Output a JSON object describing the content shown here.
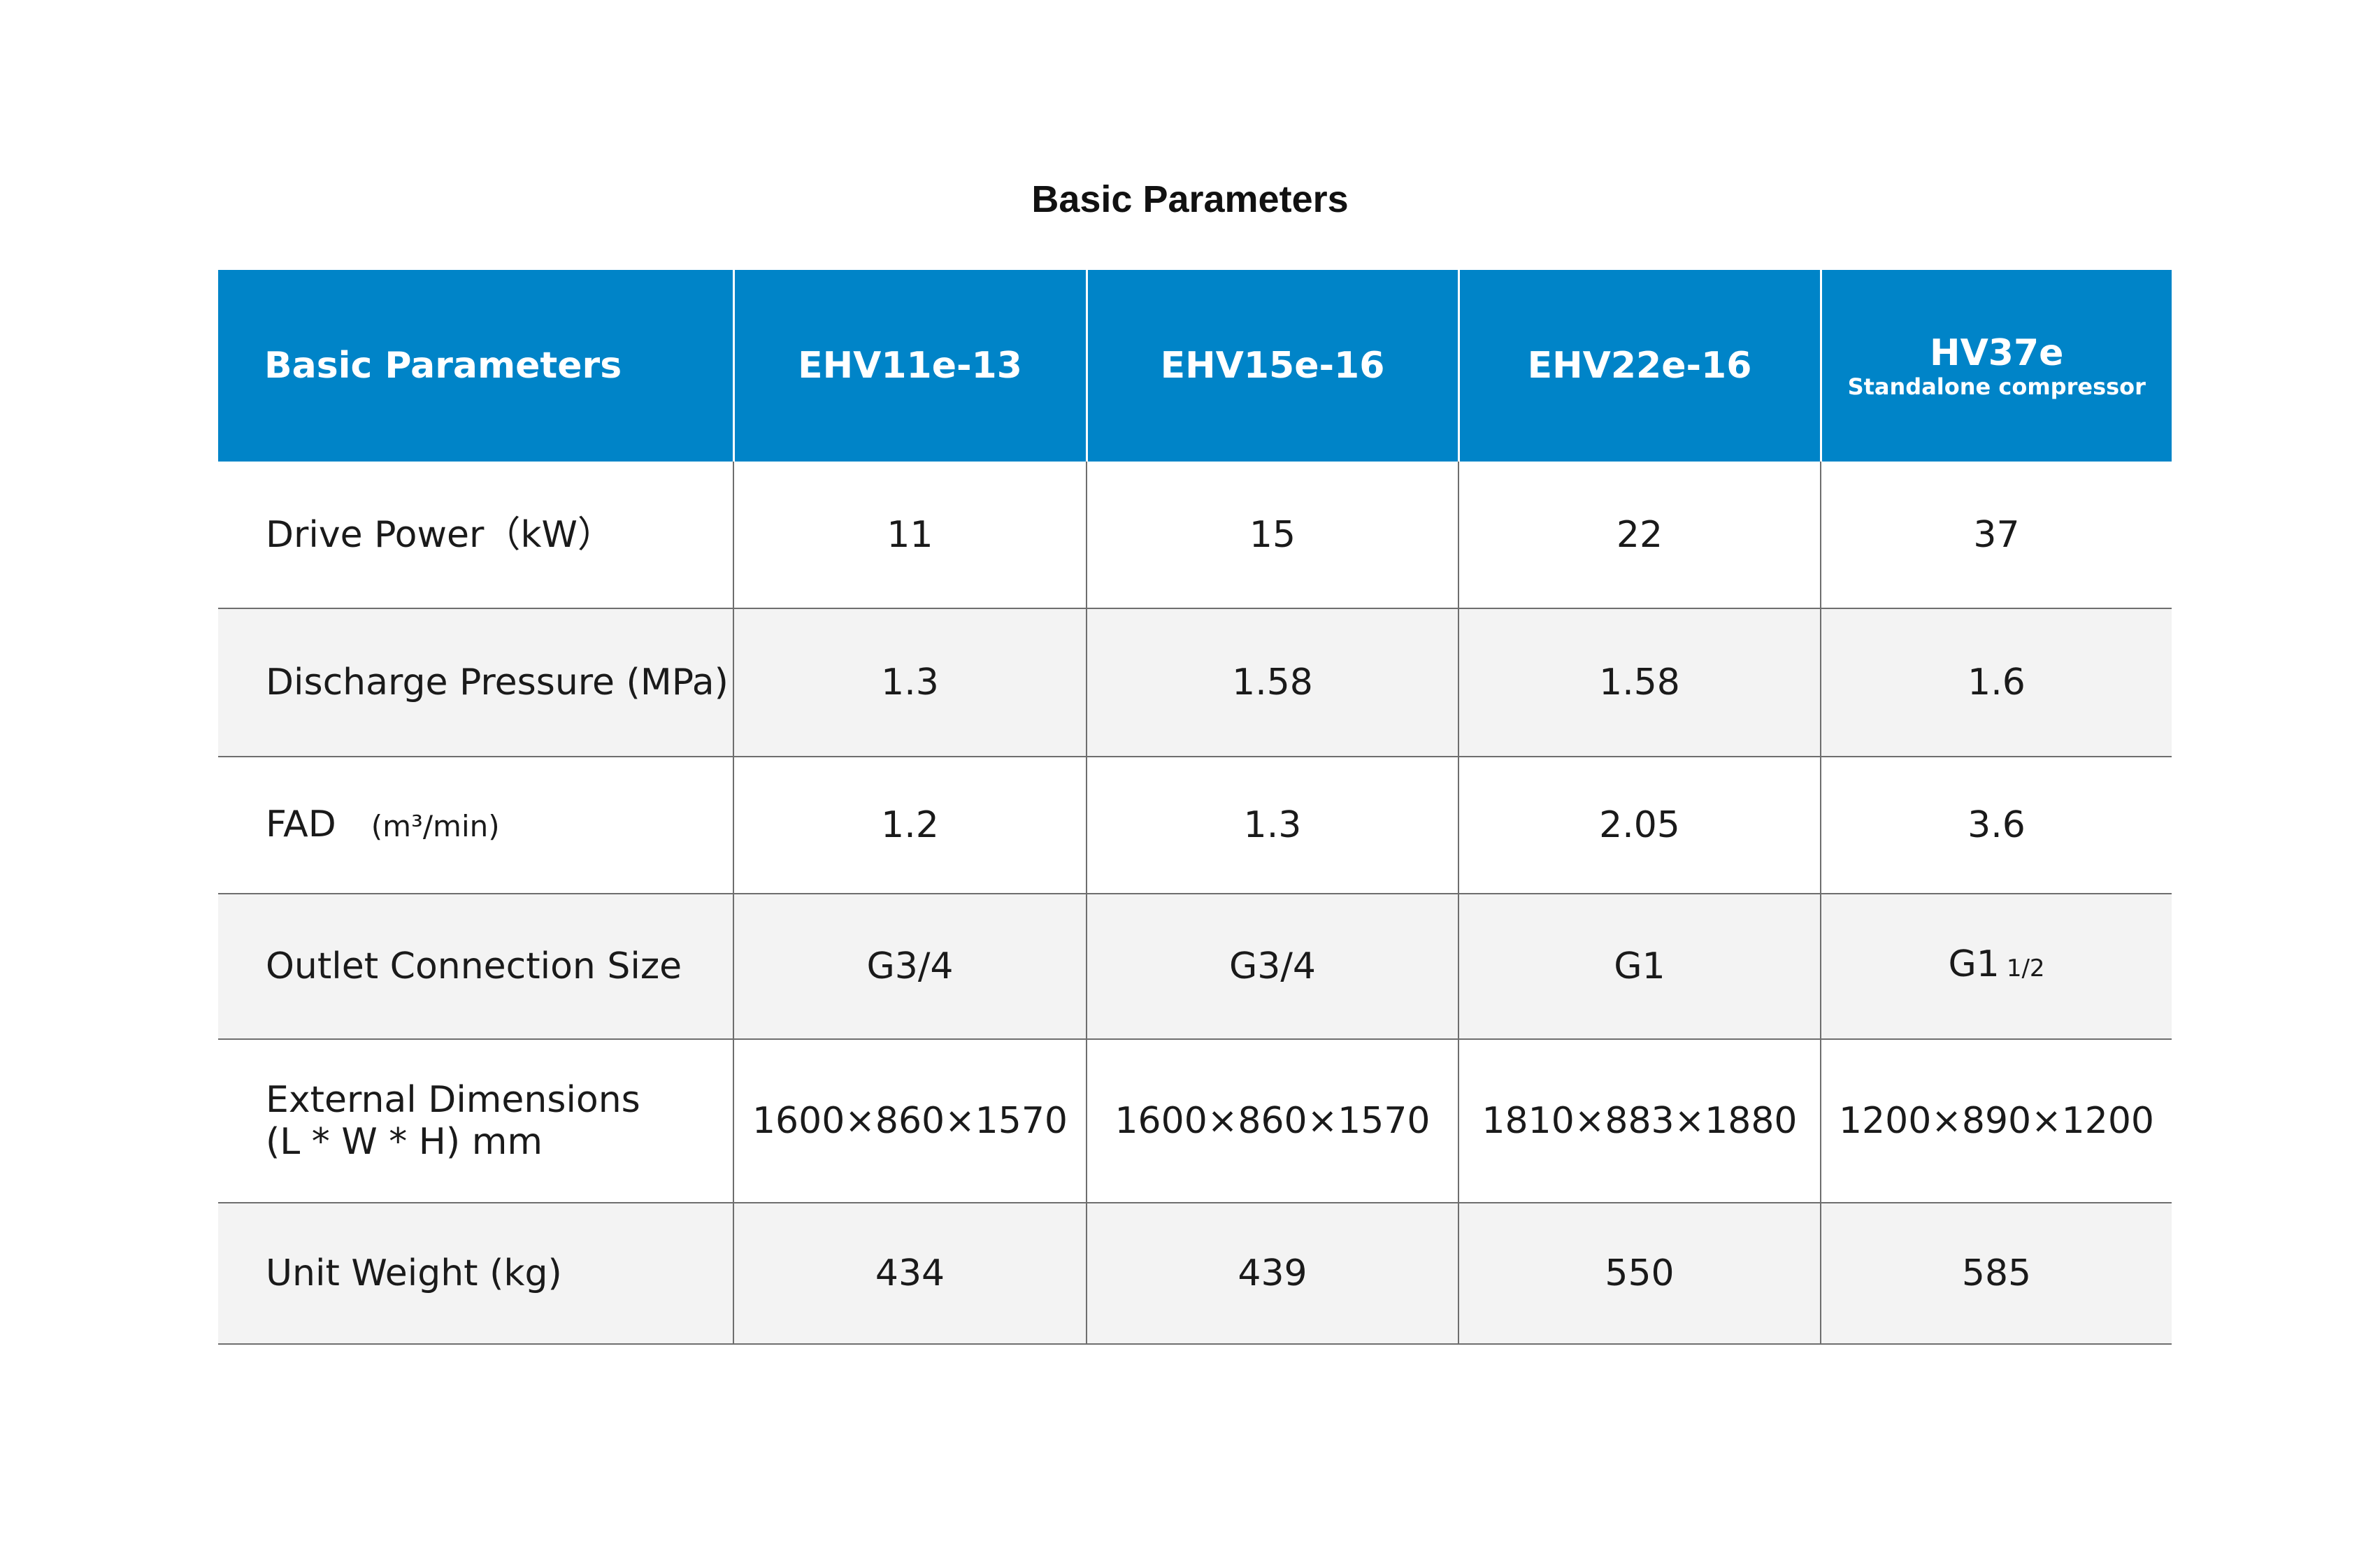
{
  "title": "Basic Parameters",
  "table": {
    "header": {
      "first": "Basic Parameters",
      "models": [
        {
          "name": "EHV11e-13",
          "note": ""
        },
        {
          "name": "EHV15e-16",
          "note": ""
        },
        {
          "name": "EHV22e-16",
          "note": ""
        },
        {
          "name": "HV37e",
          "note": "Standalone compressor"
        }
      ]
    },
    "rows": [
      {
        "label": "Drive Power（kW）",
        "values": [
          "11",
          "15",
          "22",
          "37"
        ]
      },
      {
        "label": "Discharge Pressure (MPa)",
        "values": [
          "1.3",
          "1.58",
          "1.58",
          "1.6"
        ]
      },
      {
        "label": "FAD",
        "unit": "(m³/min)",
        "values": [
          "1.2",
          "1.3",
          "2.05",
          "3.6"
        ]
      },
      {
        "label": "Outlet Connection Size",
        "values": [
          "G3/4",
          "G3/4",
          "G1",
          "G1"
        ],
        "last_suffix": "1/2"
      },
      {
        "label_line1": "External Dimensions",
        "label_line2": "(L * W * H) mm",
        "values": [
          "1600×860×1570",
          "1600×860×1570",
          "1810×883×1880",
          "1200×890×1200"
        ]
      },
      {
        "label": "Unit Weight (kg)",
        "values": [
          "434",
          "439",
          "550",
          "585"
        ]
      }
    ]
  },
  "colors": {
    "header_bg": "#0084c8",
    "header_text": "#ffffff",
    "alt_row_bg": "#f3f3f3",
    "border": "#6e6e6e"
  }
}
